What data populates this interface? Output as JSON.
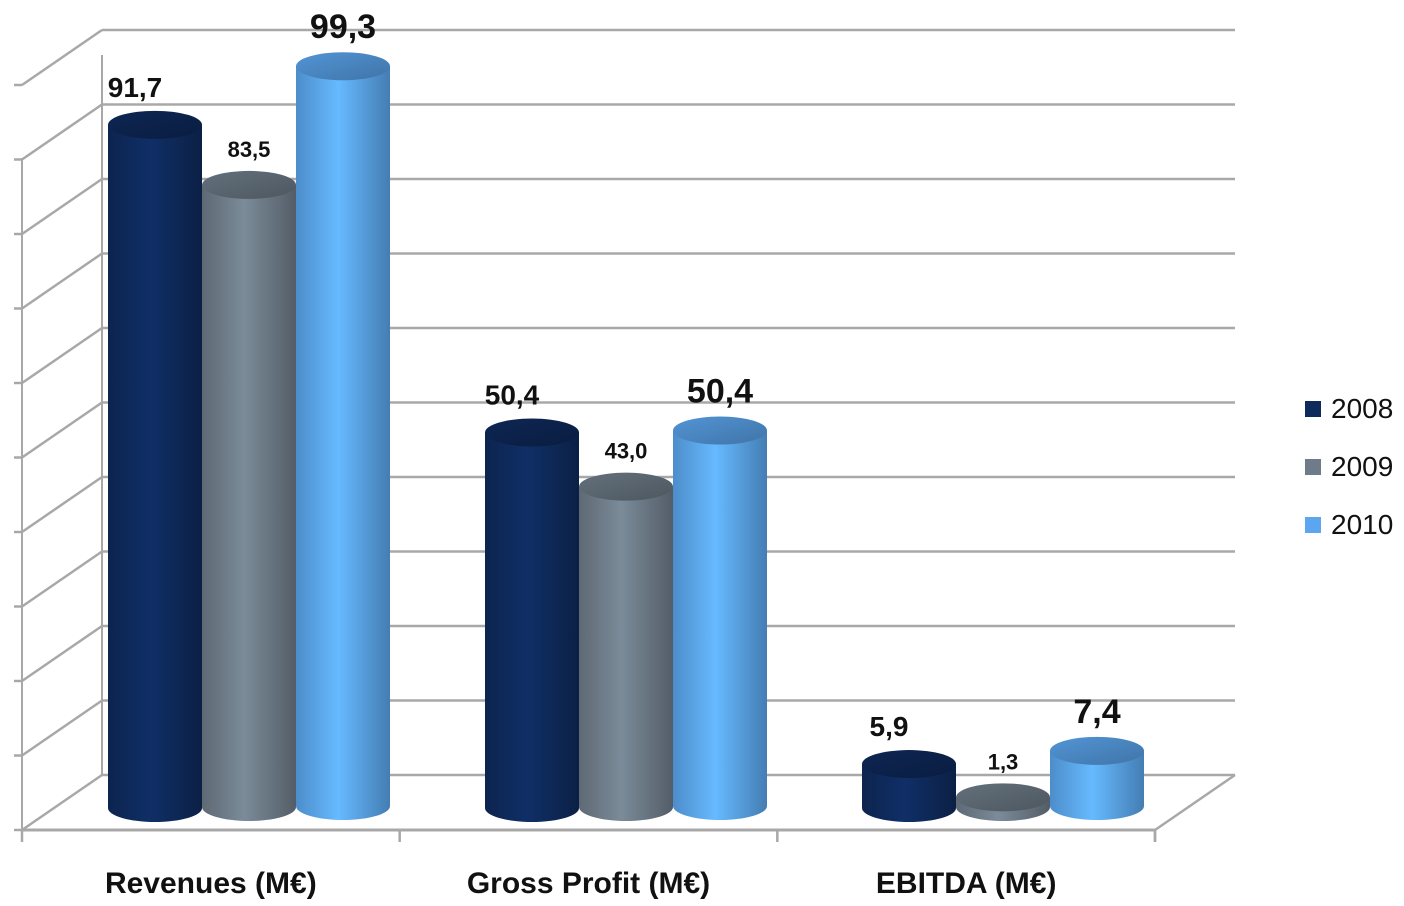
{
  "chart_data": {
    "type": "bar",
    "style": "3d-cylinder",
    "categories": [
      "Revenues (M€)",
      "Gross Profit (M€)",
      "EBITDA (M€)"
    ],
    "series": [
      {
        "name": "2008",
        "values": [
          91.7,
          50.4,
          5.9
        ],
        "labels": [
          "91,7",
          "50,4",
          "5,9"
        ],
        "color": "#0e2a5c"
      },
      {
        "name": "2009",
        "values": [
          83.5,
          43.0,
          1.3
        ],
        "labels": [
          "83,5",
          "43,0",
          "1,3"
        ],
        "color": "#6e7c89"
      },
      {
        "name": "2010",
        "values": [
          99.3,
          50.4,
          7.4
        ],
        "labels": [
          "99,3",
          "50,4",
          "7,4"
        ],
        "color": "#5ba6ee"
      }
    ],
    "title": "",
    "xlabel": "",
    "ylabel": "",
    "ylim": [
      0,
      100
    ],
    "grid": true,
    "legend_position": "right"
  }
}
